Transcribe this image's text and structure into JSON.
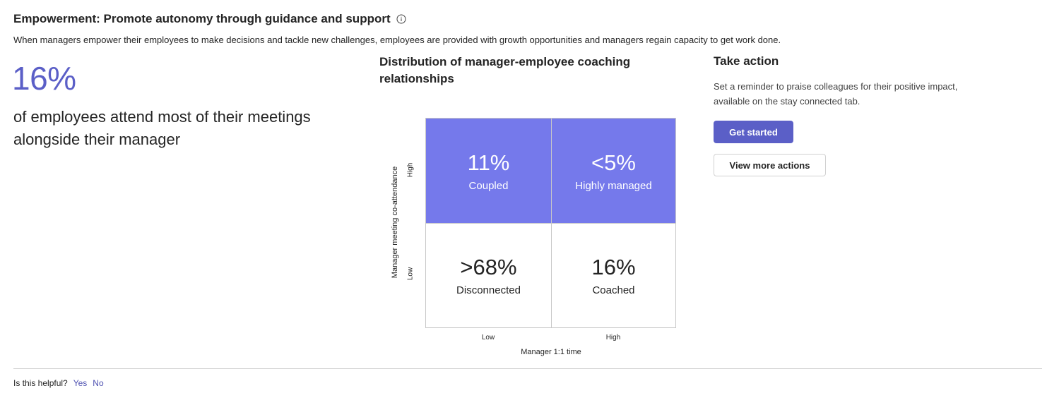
{
  "header": {
    "title": "Empowerment: Promote autonomy through guidance and support",
    "subtitle": "When managers empower their employees to make decisions and tackle new challenges, employees are provided with growth opportunities and managers regain capacity to get work done."
  },
  "headline": {
    "percent": "16%",
    "description": "of employees attend most of their meetings alongside their manager"
  },
  "matrix": {
    "title": "Distribution of manager-employee coaching relationships",
    "y_axis_label": "Manager meeting co-attendance",
    "y_high": "High",
    "y_low": "Low",
    "x_axis_label": "Manager 1:1 time",
    "x_low": "Low",
    "x_high": "High",
    "cells": {
      "top_left": {
        "value": "11%",
        "label": "Coupled"
      },
      "top_right": {
        "value": "<5%",
        "label": "Highly managed"
      },
      "bottom_left": {
        "value": ">68%",
        "label": "Disconnected"
      },
      "bottom_right": {
        "value": "16%",
        "label": "Coached"
      }
    },
    "filled_color": "#7579eb"
  },
  "action": {
    "title": "Take action",
    "description": "Set a reminder to praise colleagues for their positive impact, available on the stay connected tab.",
    "primary_label": "Get started",
    "secondary_label": "View more actions"
  },
  "feedback": {
    "question": "Is this helpful?",
    "yes": "Yes",
    "no": "No"
  },
  "colors": {
    "accent": "#5b5fc7",
    "link": "#4f52b2"
  }
}
